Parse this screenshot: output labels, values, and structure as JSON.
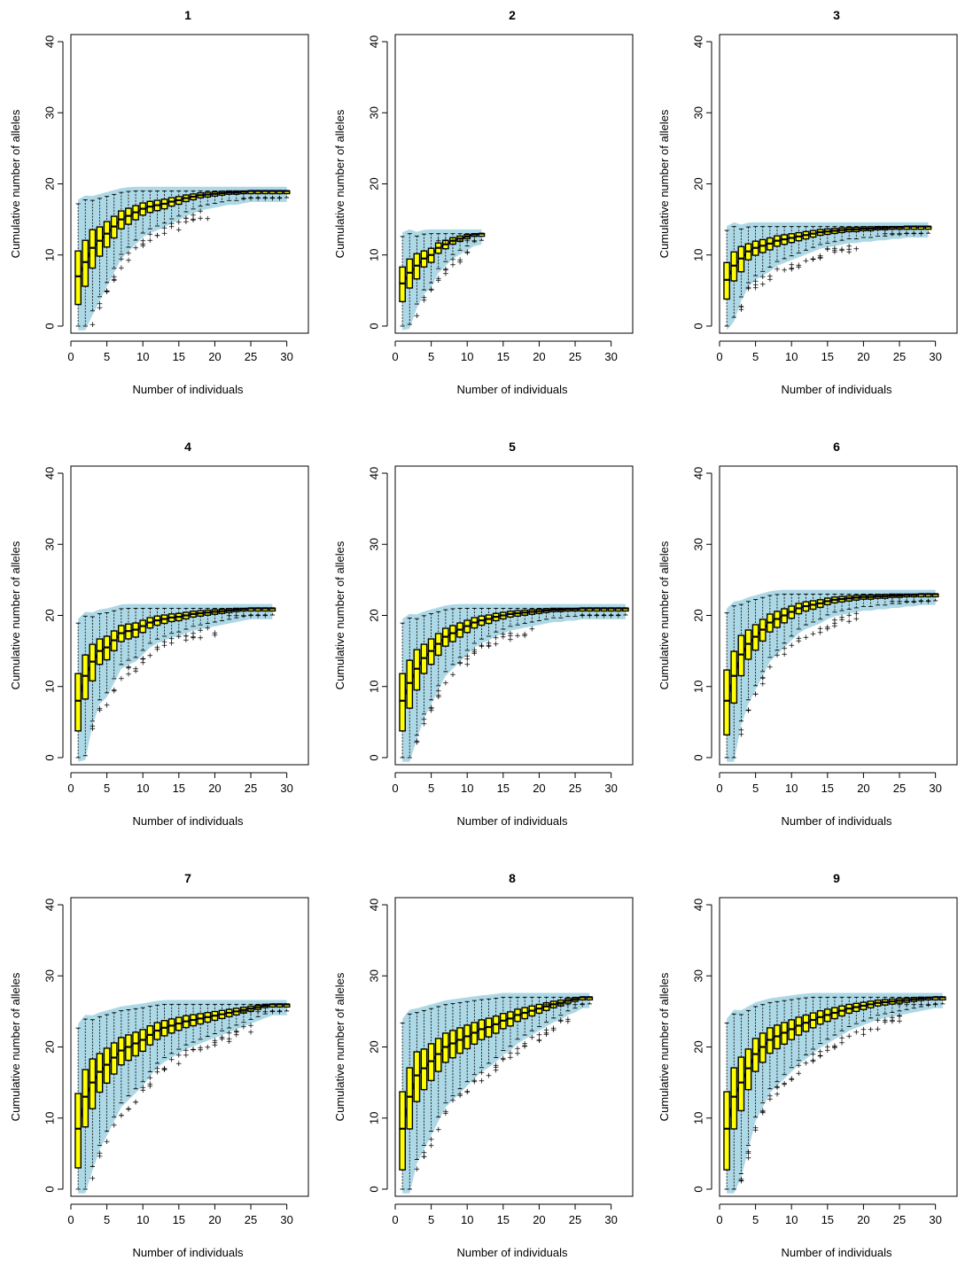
{
  "colors": {
    "box_fill": "#ffff00",
    "box_border": "#000000",
    "envelope": "#add8e6",
    "mean_line": "#0000ff",
    "outlier": "#000000"
  },
  "chart_data": [
    {
      "type": "box",
      "title": "1",
      "xlabel": "Number of individuals",
      "ylabel": "Cumulative number of alleles",
      "xlim": [
        0,
        33
      ],
      "ylim": [
        -1,
        41
      ],
      "xticks": [
        0,
        5,
        10,
        15,
        20,
        25,
        30
      ],
      "yticks": [
        0,
        10,
        20,
        30,
        40
      ],
      "n_max": 30,
      "final": 19,
      "x": [
        1,
        2,
        3,
        4,
        5,
        6,
        7,
        8,
        9,
        10,
        11,
        12,
        13,
        14,
        15,
        16,
        17,
        18,
        19,
        20,
        21,
        22,
        23,
        24,
        25,
        26,
        27,
        28,
        29,
        30
      ],
      "median": [
        7,
        9,
        11,
        12,
        13,
        14,
        15,
        15.5,
        16,
        16.5,
        16.8,
        17,
        17.2,
        17.5,
        17.7,
        18,
        18.2,
        18.4,
        18.5,
        18.6,
        18.7,
        18.8,
        18.8,
        18.9,
        19,
        19,
        19,
        19,
        19,
        19
      ]
    },
    {
      "type": "box",
      "title": "2",
      "xlabel": "Number of individuals",
      "ylabel": "Cumulative number of alleles",
      "xlim": [
        0,
        33
      ],
      "ylim": [
        -1,
        41
      ],
      "xticks": [
        0,
        5,
        10,
        15,
        20,
        25,
        30
      ],
      "yticks": [
        0,
        10,
        20,
        30,
        40
      ],
      "n_max": 12,
      "final": 13,
      "x": [
        1,
        2,
        3,
        4,
        5,
        6,
        7,
        8,
        9,
        10,
        11,
        12
      ],
      "median": [
        6,
        7.5,
        8.5,
        9.5,
        10,
        11,
        11.5,
        12,
        12.3,
        12.6,
        12.9,
        13
      ]
    },
    {
      "type": "box",
      "title": "3",
      "xlabel": "Number of individuals",
      "ylabel": "Cumulative number of alleles",
      "xlim": [
        0,
        33
      ],
      "ylim": [
        -1,
        41
      ],
      "xticks": [
        0,
        5,
        10,
        15,
        20,
        25,
        30
      ],
      "yticks": [
        0,
        10,
        20,
        30,
        40
      ],
      "n_max": 29,
      "final": 14,
      "x": [
        1,
        2,
        3,
        4,
        5,
        6,
        7,
        8,
        9,
        10,
        11,
        12,
        13,
        14,
        15,
        16,
        17,
        18,
        19,
        20,
        21,
        22,
        23,
        24,
        25,
        26,
        27,
        28,
        29
      ],
      "median": [
        6.5,
        8.5,
        9.5,
        10.5,
        11,
        11.3,
        11.6,
        12,
        12.2,
        12.4,
        12.6,
        12.8,
        13,
        13.2,
        13.3,
        13.4,
        13.5,
        13.6,
        13.6,
        13.7,
        13.7,
        13.8,
        13.8,
        13.9,
        13.9,
        14,
        14,
        14,
        14
      ]
    },
    {
      "type": "box",
      "title": "4",
      "xlabel": "Number of individuals",
      "ylabel": "Cumulative number of alleles",
      "xlim": [
        0,
        33
      ],
      "ylim": [
        -1,
        41
      ],
      "xticks": [
        0,
        5,
        10,
        15,
        20,
        25,
        30
      ],
      "yticks": [
        0,
        10,
        20,
        30,
        40
      ],
      "n_max": 28,
      "final": 21,
      "x": [
        1,
        2,
        3,
        4,
        5,
        6,
        7,
        8,
        9,
        10,
        11,
        12,
        13,
        14,
        15,
        16,
        17,
        18,
        19,
        20,
        21,
        22,
        23,
        24,
        25,
        26,
        27,
        28
      ],
      "median": [
        8,
        11.5,
        13.5,
        15,
        15.5,
        16.5,
        17.5,
        17.8,
        18,
        18.5,
        19,
        19.3,
        19.5,
        19.7,
        19.8,
        20,
        20.2,
        20.3,
        20.4,
        20.5,
        20.6,
        20.7,
        20.8,
        20.9,
        21,
        21,
        21,
        21
      ]
    },
    {
      "type": "box",
      "title": "5",
      "xlabel": "Number of individuals",
      "ylabel": "Cumulative number of alleles",
      "xlim": [
        0,
        33
      ],
      "ylim": [
        -1,
        41
      ],
      "xticks": [
        0,
        5,
        10,
        15,
        20,
        25,
        30
      ],
      "yticks": [
        0,
        10,
        20,
        30,
        40
      ],
      "n_max": 32,
      "final": 21,
      "x": [
        1,
        2,
        3,
        4,
        5,
        6,
        7,
        8,
        9,
        10,
        11,
        12,
        13,
        14,
        15,
        16,
        17,
        18,
        19,
        20,
        21,
        22,
        23,
        24,
        25,
        26,
        27,
        28,
        29,
        30,
        31,
        32
      ],
      "median": [
        8,
        10.5,
        12.5,
        14,
        15,
        16,
        17,
        17.5,
        18,
        18.5,
        19,
        19.3,
        19.5,
        19.8,
        20,
        20.2,
        20.3,
        20.4,
        20.5,
        20.6,
        20.7,
        20.8,
        20.8,
        20.9,
        20.9,
        21,
        21,
        21,
        21,
        21,
        21,
        21
      ]
    },
    {
      "type": "box",
      "title": "6",
      "xlabel": "Number of individuals",
      "ylabel": "Cumulative number of alleles",
      "xlim": [
        0,
        33
      ],
      "ylim": [
        -1,
        41
      ],
      "xticks": [
        0,
        5,
        10,
        15,
        20,
        25,
        30
      ],
      "yticks": [
        0,
        10,
        20,
        30,
        40
      ],
      "n_max": 30,
      "final": 23,
      "x": [
        1,
        2,
        3,
        4,
        5,
        6,
        7,
        8,
        9,
        10,
        11,
        12,
        13,
        14,
        15,
        16,
        17,
        18,
        19,
        20,
        21,
        22,
        23,
        24,
        25,
        26,
        27,
        28,
        29,
        30
      ],
      "median": [
        8,
        11.5,
        14.5,
        16,
        17,
        18,
        19,
        19.5,
        20,
        20.5,
        21,
        21.3,
        21.5,
        21.7,
        22,
        22.2,
        22.3,
        22.4,
        22.5,
        22.6,
        22.6,
        22.7,
        22.7,
        22.8,
        22.8,
        22.9,
        22.9,
        23,
        23,
        23
      ]
    },
    {
      "type": "box",
      "title": "7",
      "xlabel": "Number of individuals",
      "ylabel": "Cumulative number of alleles",
      "xlim": [
        0,
        33
      ],
      "ylim": [
        -1,
        41
      ],
      "xticks": [
        0,
        5,
        10,
        15,
        20,
        25,
        30
      ],
      "yticks": [
        0,
        10,
        20,
        30,
        40
      ],
      "n_max": 30,
      "final": 26,
      "x": [
        1,
        2,
        3,
        4,
        5,
        6,
        7,
        8,
        9,
        10,
        11,
        12,
        13,
        14,
        15,
        16,
        17,
        18,
        19,
        20,
        21,
        22,
        23,
        24,
        25,
        26,
        27,
        28,
        29,
        30
      ],
      "median": [
        8.5,
        13,
        15,
        16.5,
        17.5,
        18.5,
        19.5,
        20,
        20.5,
        21,
        21.7,
        22.3,
        22.7,
        23,
        23.3,
        23.6,
        23.8,
        24,
        24.2,
        24.4,
        24.6,
        24.8,
        25,
        25.2,
        25.4,
        25.6,
        25.8,
        26,
        26,
        26
      ]
    },
    {
      "type": "box",
      "title": "8",
      "xlabel": "Number of individuals",
      "ylabel": "Cumulative number of alleles",
      "xlim": [
        0,
        33
      ],
      "ylim": [
        -1,
        41
      ],
      "xticks": [
        0,
        5,
        10,
        15,
        20,
        25,
        30
      ],
      "yticks": [
        0,
        10,
        20,
        30,
        40
      ],
      "n_max": 27,
      "final": 27,
      "x": [
        1,
        2,
        3,
        4,
        5,
        6,
        7,
        8,
        9,
        10,
        11,
        12,
        13,
        14,
        15,
        16,
        17,
        18,
        19,
        20,
        21,
        22,
        23,
        24,
        25,
        26,
        27
      ],
      "median": [
        8.5,
        13,
        16,
        17,
        18,
        19,
        20,
        20.5,
        21,
        21.5,
        22,
        22.5,
        22.8,
        23.2,
        23.7,
        24,
        24.5,
        24.8,
        25.1,
        25.4,
        25.7,
        26,
        26.2,
        26.5,
        26.7,
        27,
        27
      ]
    },
    {
      "type": "box",
      "title": "9",
      "xlabel": "Number of individuals",
      "ylabel": "Cumulative number of alleles",
      "xlim": [
        0,
        33
      ],
      "ylim": [
        -1,
        41
      ],
      "xticks": [
        0,
        5,
        10,
        15,
        20,
        25,
        30
      ],
      "yticks": [
        0,
        10,
        20,
        30,
        40
      ],
      "n_max": 31,
      "final": 27,
      "x": [
        1,
        2,
        3,
        4,
        5,
        6,
        7,
        8,
        9,
        10,
        11,
        12,
        13,
        14,
        15,
        16,
        17,
        18,
        19,
        20,
        21,
        22,
        23,
        24,
        25,
        26,
        27,
        28,
        29,
        30,
        31
      ],
      "median": [
        8.5,
        13,
        15,
        17,
        19,
        20,
        21,
        21.5,
        22,
        22.5,
        23,
        23.4,
        23.8,
        24.2,
        24.5,
        24.8,
        25.1,
        25.4,
        25.6,
        25.8,
        26,
        26.2,
        26.3,
        26.4,
        26.5,
        26.6,
        26.7,
        26.8,
        26.9,
        27,
        27
      ]
    }
  ]
}
